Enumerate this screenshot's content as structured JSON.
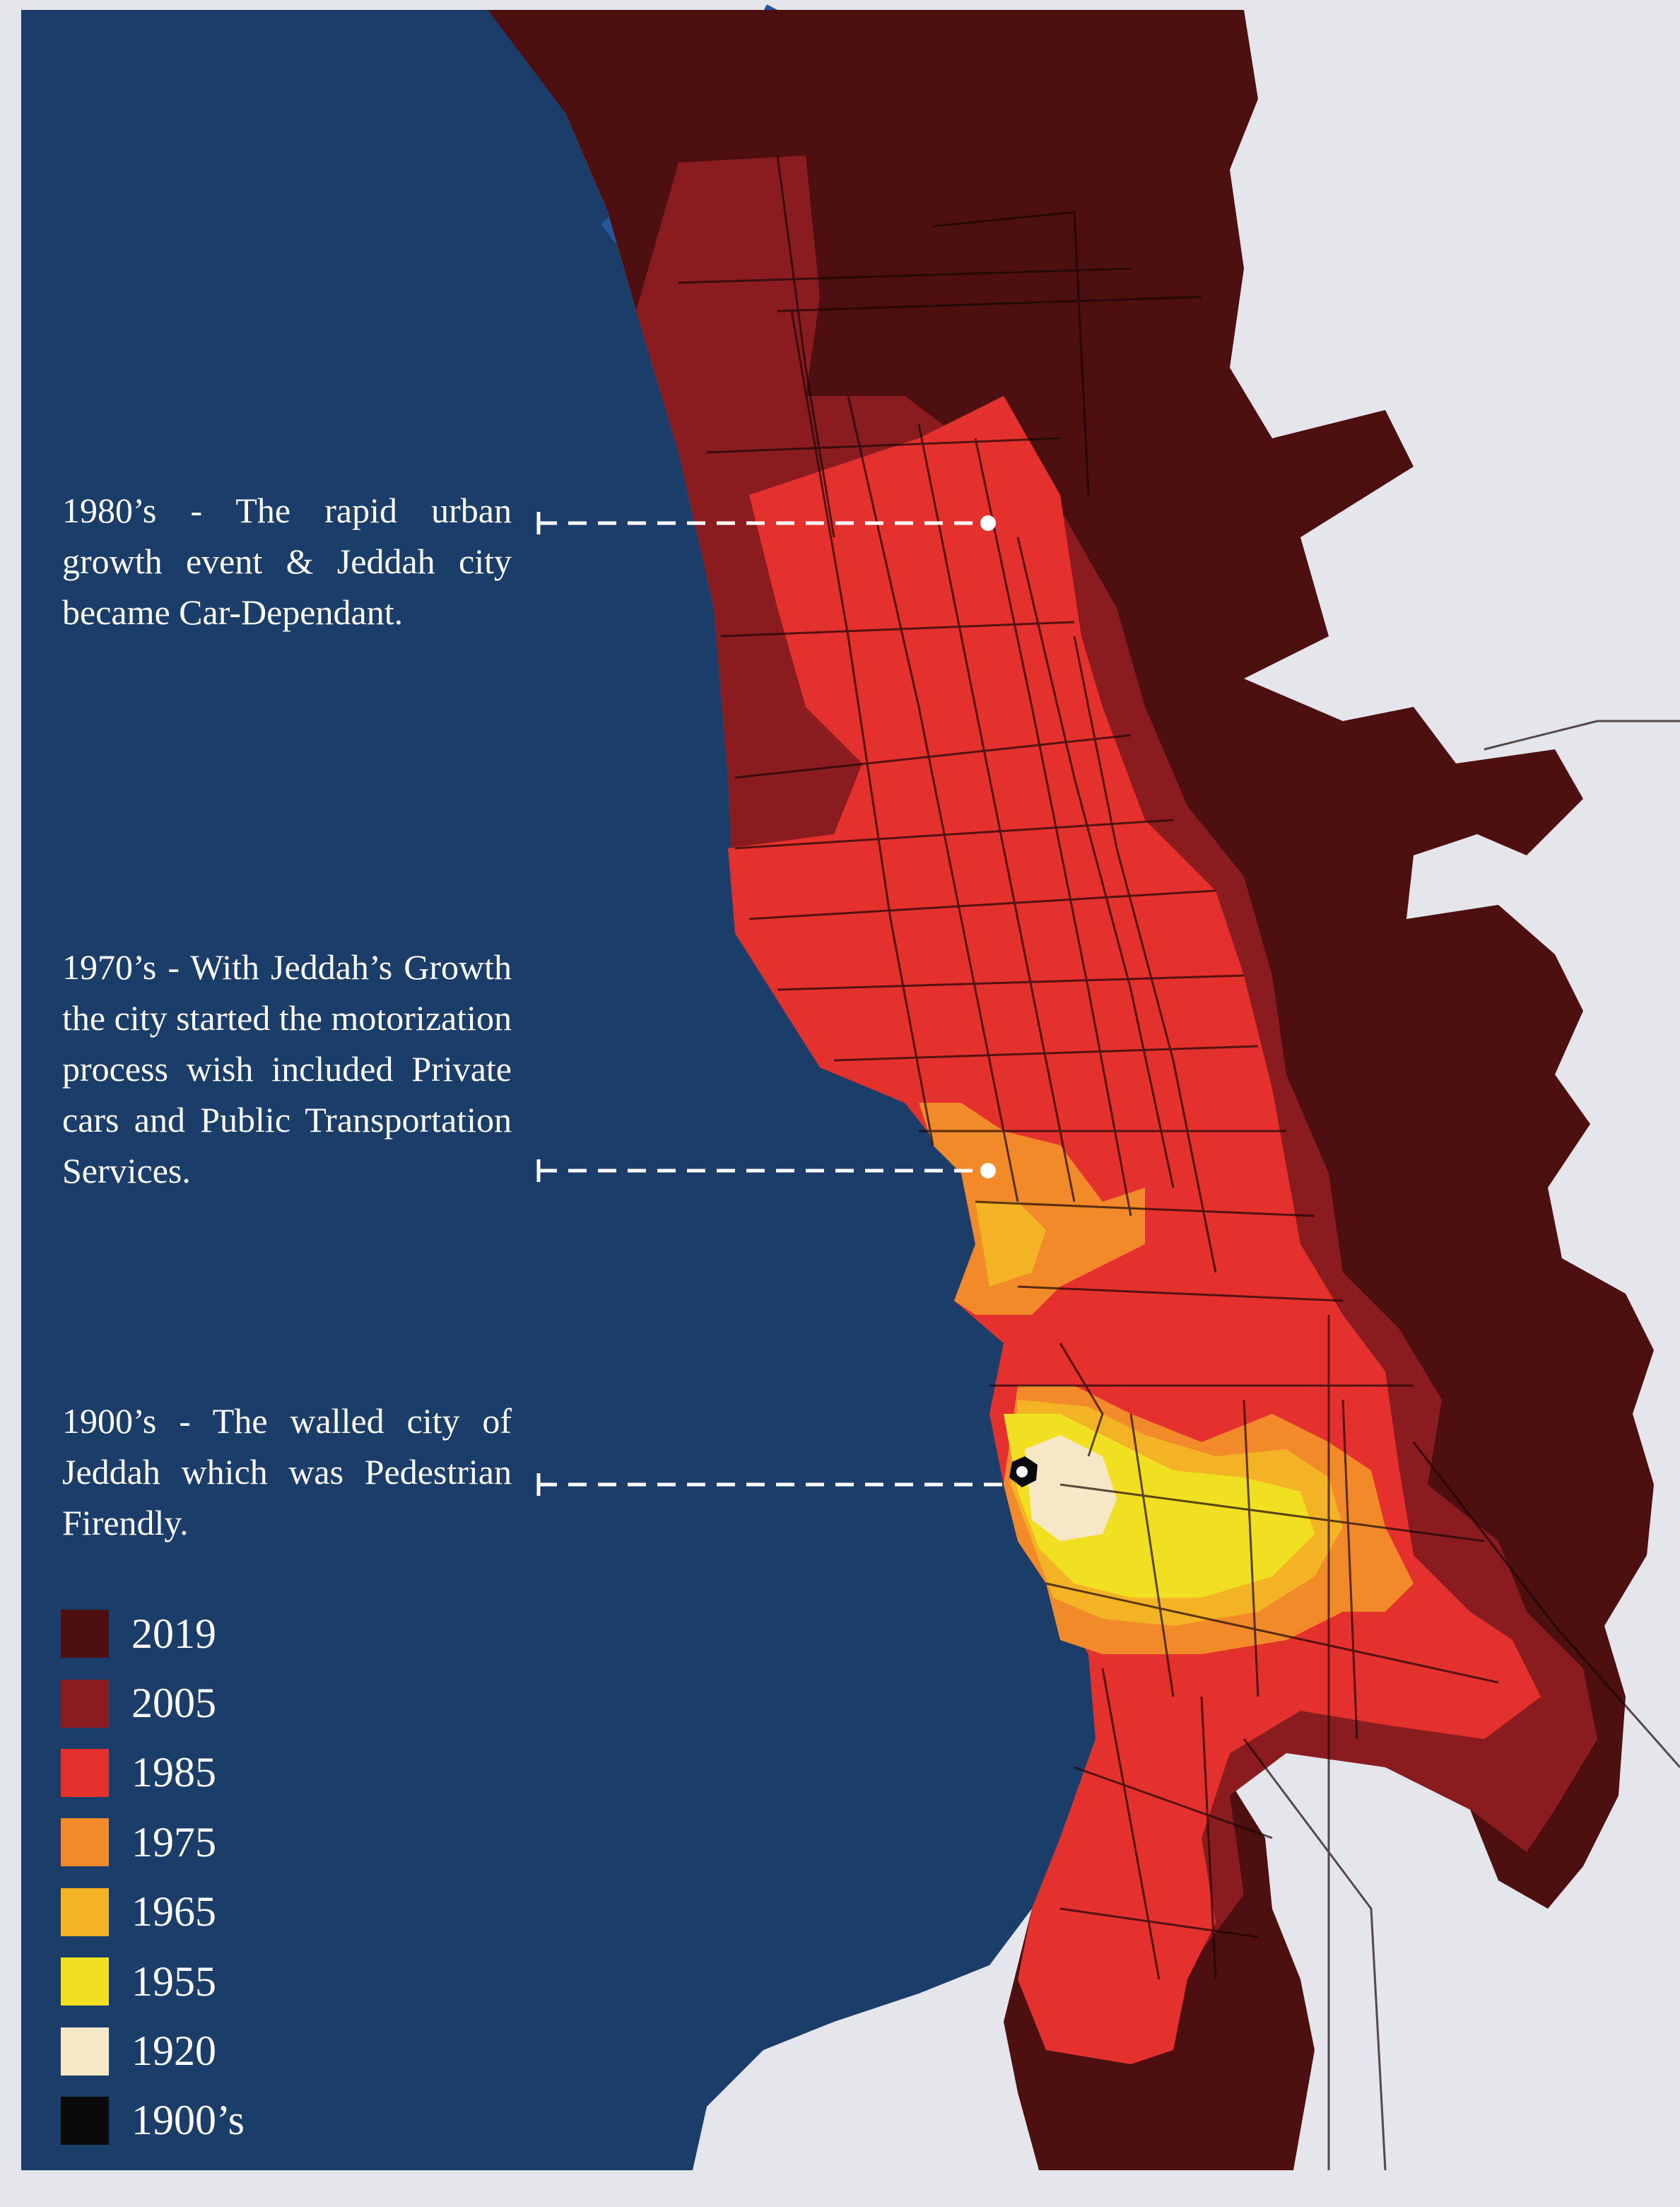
{
  "colors": {
    "sea": "#1b3d69",
    "land": "#e4e6ec",
    "river": "#24589a",
    "streets": "#1a0606",
    "annotation": "#ffffff"
  },
  "annotations": [
    {
      "id": "1980",
      "text": "1980’s - The rapid urban growth event & Jeddah city became Car-Dependant."
    },
    {
      "id": "1970",
      "text": "1970’s - With Jeddah’s Growth the city started the motorization process wish included Private cars and Public Transportation Services."
    },
    {
      "id": "1900",
      "text": "1900’s - The walled city of Jeddah which was Pedestrian Firendly."
    }
  ],
  "legend": [
    {
      "label": "2019",
      "color": "#4e0f10"
    },
    {
      "label": "2005",
      "color": "#8a1b1e"
    },
    {
      "label": "1985",
      "color": "#e5312d"
    },
    {
      "label": "1975",
      "color": "#f28a2a"
    },
    {
      "label": "1965",
      "color": "#f4b324"
    },
    {
      "label": "1955",
      "color": "#f1df21"
    },
    {
      "label": "1920",
      "color": "#f6e8c6"
    },
    {
      "label": "1900’s",
      "color": "#0a0a0a"
    }
  ]
}
